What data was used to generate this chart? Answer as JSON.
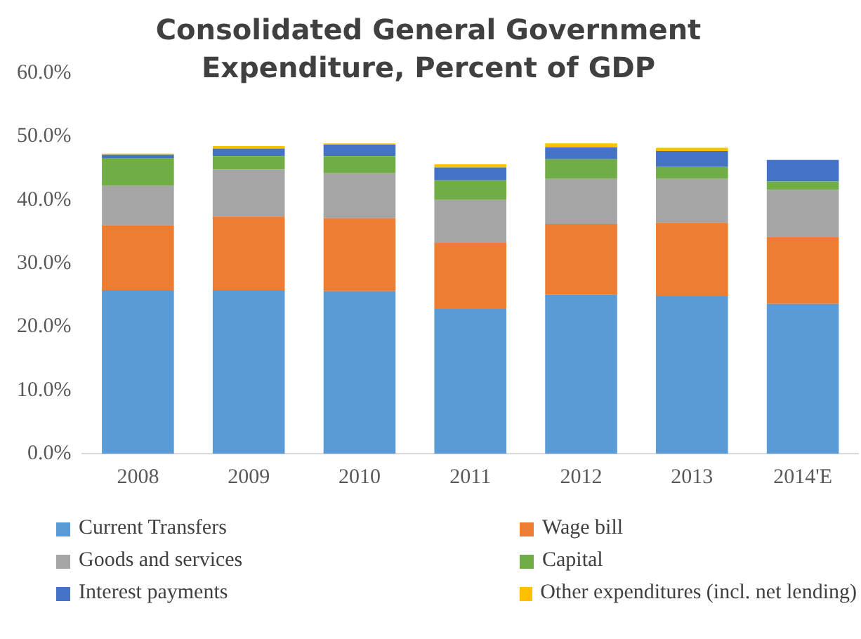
{
  "chart_data": {
    "type": "bar",
    "title": "Consolidated General Government Expenditure, Percent of GDP",
    "stacked": true,
    "legend": "bottom",
    "grid": false,
    "categories": [
      "2008",
      "2009",
      "2010",
      "2011",
      "2012",
      "2013",
      "2014'E"
    ],
    "ylim": [
      0,
      60
    ],
    "yticks": [
      {
        "value": 0,
        "label": "0.0%"
      },
      {
        "value": 10,
        "label": "10.0%"
      },
      {
        "value": 20,
        "label": "20.0%"
      },
      {
        "value": 30,
        "label": "30.0%"
      },
      {
        "value": 40,
        "label": "40.0%"
      },
      {
        "value": 50,
        "label": "50.0%"
      },
      {
        "value": 60,
        "label": "60.0%"
      }
    ],
    "series": [
      {
        "name": "Current Transfers",
        "color": "#5b9bd5",
        "values": [
          25.8,
          25.8,
          25.6,
          22.8,
          25.1,
          24.8,
          23.6
        ]
      },
      {
        "name": "Wage bill",
        "color": "#ed7d31",
        "values": [
          10.2,
          11.6,
          11.5,
          10.4,
          11.1,
          11.6,
          10.5
        ]
      },
      {
        "name": "Goods and services",
        "color": "#a5a5a5",
        "values": [
          6.2,
          7.4,
          7.1,
          6.8,
          7.1,
          6.9,
          7.5
        ]
      },
      {
        "name": "Capital",
        "color": "#70ad47",
        "values": [
          4.4,
          2.1,
          2.7,
          3.1,
          3.1,
          1.9,
          1.3
        ]
      },
      {
        "name": "Interest payments",
        "color": "#4472c4",
        "values": [
          0.5,
          1.2,
          1.8,
          2.0,
          1.9,
          2.5,
          3.4
        ]
      },
      {
        "name": "Other expenditures (incl. net lending)",
        "color": "#ffc000",
        "values": [
          0.2,
          0.4,
          0.2,
          0.5,
          0.6,
          0.5,
          0
        ]
      }
    ]
  }
}
